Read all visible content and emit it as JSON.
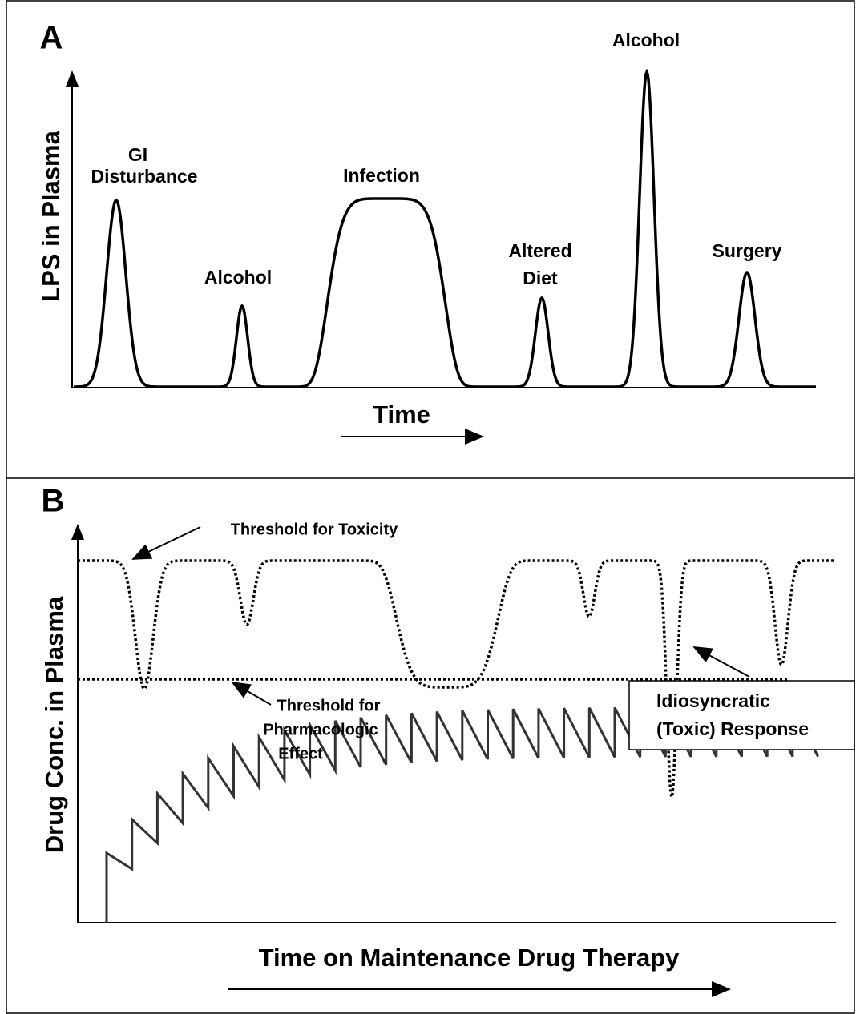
{
  "panel_a": {
    "label": "A",
    "y_axis": "LPS in Plasma",
    "x_axis": "Time",
    "events": [
      {
        "lines": [
          "GI",
          "Disturbance"
        ]
      },
      {
        "lines": [
          "Alcohol"
        ]
      },
      {
        "lines": [
          "Infection"
        ]
      },
      {
        "lines": [
          "Altered",
          "Diet"
        ]
      },
      {
        "lines": [
          "Alcohol"
        ]
      },
      {
        "lines": [
          "Surgery"
        ]
      }
    ]
  },
  "panel_b": {
    "label": "B",
    "y_axis": "Drug Conc. in Plasma",
    "x_axis": "Time on Maintenance Drug Therapy",
    "threshold_toxicity": "Threshold for Toxicity",
    "threshold_effect": [
      "Threshold for",
      "Pharmacologic",
      "Effect"
    ],
    "response": [
      "Idiosyncratic",
      "(Toxic) Response"
    ]
  }
}
